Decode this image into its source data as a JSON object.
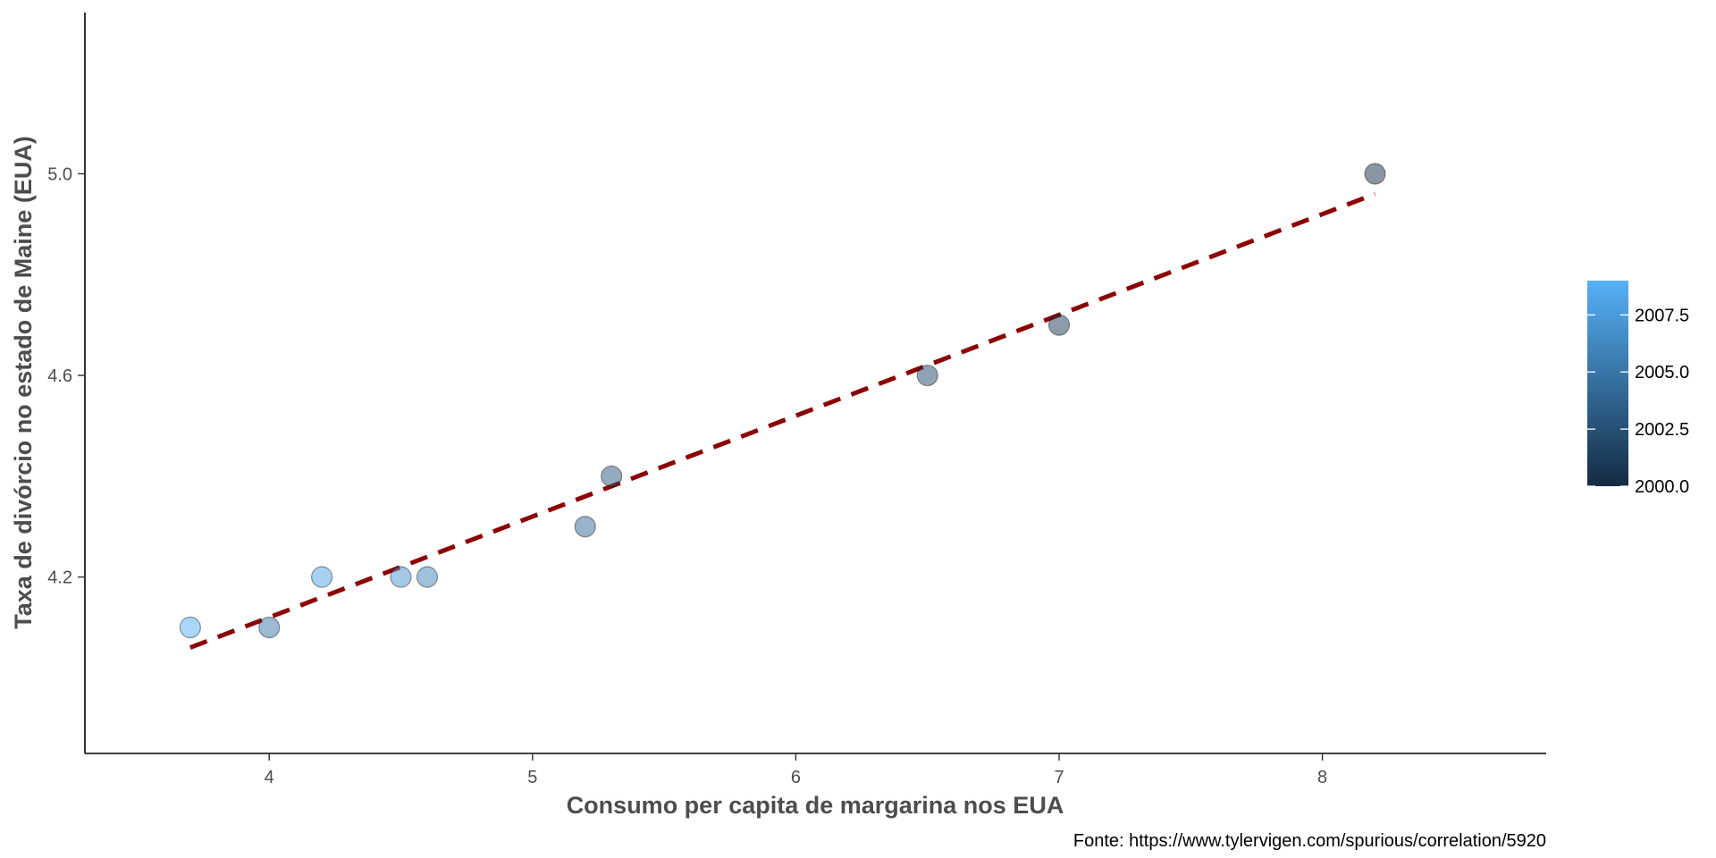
{
  "chart_data": {
    "type": "scatter",
    "title": "",
    "xlabel": "Consumo per capita de margarina nos EUA",
    "ylabel": "Taxa de divórcio no estado de Maine (EUA)",
    "caption": "Fonte: https://www.tylervigen.com/spurious/correlation/5920",
    "xlim": [
      3.3,
      8.85
    ],
    "ylim": [
      3.85,
      5.32
    ],
    "x_ticks": [
      4,
      5,
      6,
      7,
      8
    ],
    "x_tick_labels": [
      "4",
      "5",
      "6",
      "7",
      "8"
    ],
    "y_ticks": [
      4.2,
      4.6,
      5.0
    ],
    "y_tick_labels": [
      "4.2",
      "4.6",
      "5.0"
    ],
    "grid": false,
    "points": [
      {
        "x": 8.2,
        "y": 5.0,
        "year": 2000
      },
      {
        "x": 7.0,
        "y": 4.7,
        "year": 2001
      },
      {
        "x": 6.5,
        "y": 4.6,
        "year": 2002
      },
      {
        "x": 5.3,
        "y": 4.4,
        "year": 2003
      },
      {
        "x": 5.2,
        "y": 4.3,
        "year": 2004
      },
      {
        "x": 4.0,
        "y": 4.1,
        "year": 2005
      },
      {
        "x": 4.6,
        "y": 4.2,
        "year": 2006
      },
      {
        "x": 4.5,
        "y": 4.2,
        "year": 2007
      },
      {
        "x": 4.2,
        "y": 4.2,
        "year": 2008
      },
      {
        "x": 3.7,
        "y": 4.1,
        "year": 2009
      }
    ],
    "trend_line": {
      "x": [
        3.7,
        8.2
      ],
      "y": [
        4.06,
        4.96
      ],
      "style": "dashed",
      "color": "#8b0000"
    },
    "legend": {
      "placement": "right",
      "type": "colorbar",
      "range": [
        2000,
        2009
      ],
      "ticks": [
        2000.0,
        2002.5,
        2005.0,
        2007.5
      ],
      "tick_labels": [
        "2000.0",
        "2002.5",
        "2005.0",
        "2007.5"
      ],
      "colors": [
        "#132b43",
        "#56b1f7"
      ]
    },
    "point_opacity": 0.5,
    "point_outline_color": "#1a1a1a"
  }
}
